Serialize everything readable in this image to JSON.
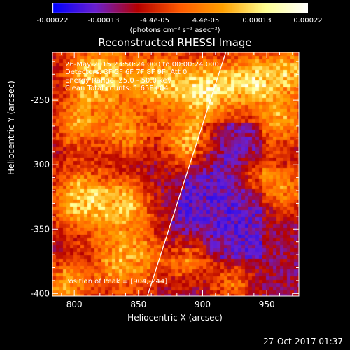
{
  "colorbar": {
    "tick_labels": [
      "-0.00022",
      "-0.00013",
      "-4.4e-05",
      "4.4e-05",
      "0.00013",
      "0.00022"
    ],
    "unit": "(photons cm⁻² s⁻¹ asec⁻²)",
    "range": [
      -0.00022,
      0.00022
    ],
    "colors": [
      "#0000ff",
      "#6a1fd0",
      "#b40000",
      "#ff5a00",
      "#ffa000",
      "#ffff90",
      "#ffffff"
    ]
  },
  "annotations": {
    "time": "26-May-2015 23:50:24.000 to 00:00:24.000",
    "detectors": "Detectors: 3F 5F 6F 7F 8F 9F, Att 0",
    "energy": "Energy Range: 25.0 - 50.0 keV",
    "clean": "Clean    Total counts: 1.65E+04",
    "peak": "Position of Peak = [904,-244]"
  },
  "footer": {
    "timestamp": "27-Oct-2017 01:37"
  },
  "chart_data": {
    "type": "heatmap",
    "title": "Reconstructed RHESSI Image",
    "xlabel": "Heliocentric X (arcsec)",
    "ylabel": "Heliocentric Y (arcsec)",
    "xlim": [
      783,
      975
    ],
    "ylim": [
      -402,
      -213
    ],
    "x_ticks": [
      800,
      850,
      900,
      950
    ],
    "y_ticks": [
      -250,
      -300,
      -350,
      -400
    ],
    "x_tick_labels": [
      "800",
      "850",
      "900",
      "950"
    ],
    "y_tick_labels": [
      "-250",
      "-300",
      "-350",
      "-400"
    ],
    "limb_line": [
      [
        857,
        -402
      ],
      [
        918,
        -213
      ]
    ],
    "peak": [
      904,
      -244
    ],
    "value_range": [
      -0.00022,
      0.00022
    ]
  }
}
